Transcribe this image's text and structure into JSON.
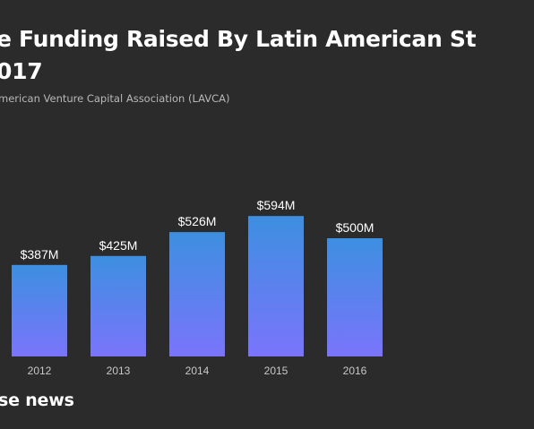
{
  "header": {
    "title": "e Funding Raised By Latin American St\n017",
    "source": "merican Venture Capital Association (LAVCA)"
  },
  "footer": {
    "brand": "se news"
  },
  "colors": {
    "background": "#2b2b2b",
    "bar_top": "#3d8fe0",
    "bar_bottom": "#7a74fb"
  },
  "chart_data": {
    "type": "bar",
    "title": "",
    "xlabel": "",
    "ylabel": "",
    "categories": [
      "2012",
      "2013",
      "2014",
      "2015",
      "2016"
    ],
    "values": [
      387,
      425,
      526,
      594,
      500
    ],
    "value_labels": [
      "$387M",
      "$425M",
      "$526M",
      "$594M",
      "$500M"
    ],
    "unit": "$M",
    "ylim": [
      0,
      650
    ],
    "grid": false,
    "legend": "none"
  }
}
